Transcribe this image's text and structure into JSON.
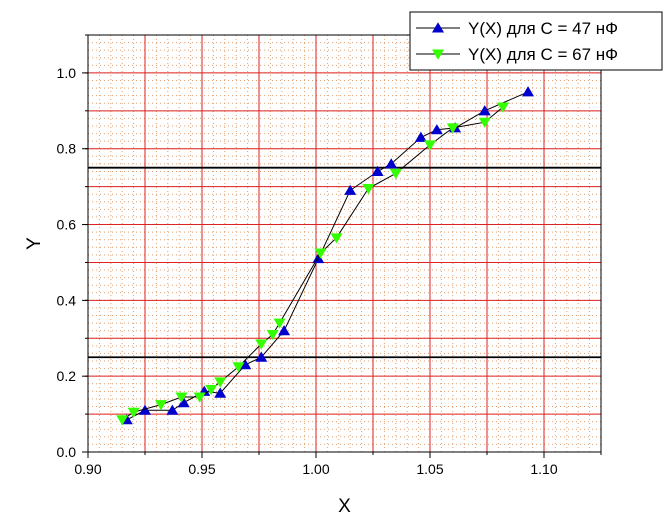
{
  "chart_data": {
    "type": "line",
    "title": "",
    "xlabel": "X",
    "ylabel": "Y",
    "xlim": [
      0.9,
      1.125
    ],
    "ylim": [
      0.0,
      1.1
    ],
    "xticks": [
      0.9,
      0.95,
      1.0,
      1.05,
      1.1
    ],
    "xtick_labels": [
      "0.90",
      "0.95",
      "1.00",
      "1.05",
      "1.10"
    ],
    "yticks": [
      0.0,
      0.2,
      0.4,
      0.6,
      0.8,
      1.0
    ],
    "ytick_labels": [
      "0.0",
      "0.2",
      "0.4",
      "0.6",
      "0.8",
      "1.0"
    ],
    "grid": true,
    "legend": "top-right",
    "reference_lines": [
      {
        "orientation": "horizontal",
        "y": 0.75,
        "color": "#000000"
      },
      {
        "orientation": "horizontal",
        "y": 0.25,
        "color": "#000000"
      }
    ],
    "series": [
      {
        "name": "Y(X) для C = 47 нФ",
        "marker": "triangle-up",
        "color": "#0000cc",
        "x": [
          0.917,
          0.925,
          0.937,
          0.942,
          0.951,
          0.958,
          0.969,
          0.976,
          0.986,
          1.001,
          1.015,
          1.027,
          1.033,
          1.046,
          1.053,
          1.061,
          1.074,
          1.093
        ],
        "y": [
          0.085,
          0.11,
          0.11,
          0.13,
          0.16,
          0.155,
          0.23,
          0.25,
          0.32,
          0.51,
          0.69,
          0.74,
          0.76,
          0.83,
          0.85,
          0.855,
          0.9,
          0.95
        ]
      },
      {
        "name": "Y(X) для C = 67 нФ",
        "marker": "triangle-down",
        "color": "#33ff00",
        "x": [
          0.915,
          0.92,
          0.932,
          0.941,
          0.949,
          0.954,
          0.958,
          0.966,
          0.976,
          0.981,
          0.984,
          1.002,
          1.009,
          1.023,
          1.035,
          1.05,
          1.06,
          1.074,
          1.082
        ],
        "y": [
          0.085,
          0.105,
          0.125,
          0.145,
          0.145,
          0.165,
          0.185,
          0.225,
          0.285,
          0.31,
          0.34,
          0.525,
          0.565,
          0.695,
          0.735,
          0.81,
          0.855,
          0.87,
          0.91
        ]
      }
    ]
  }
}
